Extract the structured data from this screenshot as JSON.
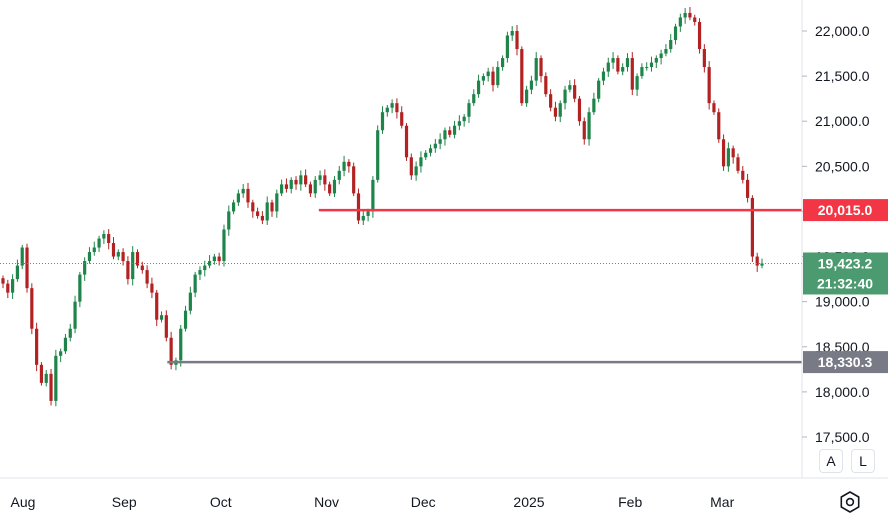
{
  "chart_data": {
    "type": "candlestick",
    "interval": "1D",
    "y_ticks": [
      {
        "value": 17500,
        "label": "17,500.0"
      },
      {
        "value": 18000,
        "label": "18,000.0"
      },
      {
        "value": 18500,
        "label": "18,500.0"
      },
      {
        "value": 19000,
        "label": "19,000.0"
      },
      {
        "value": 19500,
        "label": "19,500.0"
      },
      {
        "value": 20000,
        "label": "20,000.0"
      },
      {
        "value": 20500,
        "label": "20,500.0"
      },
      {
        "value": 21000,
        "label": "21,000.0"
      },
      {
        "value": 21500,
        "label": "21,500.0"
      },
      {
        "value": 22000,
        "label": "22,000.0"
      }
    ],
    "x_ticks": [
      {
        "date": "2024-08-01",
        "label": "Aug"
      },
      {
        "date": "2024-09-02",
        "label": "Sep"
      },
      {
        "date": "2024-10-01",
        "label": "Oct"
      },
      {
        "date": "2024-11-01",
        "label": "Nov"
      },
      {
        "date": "2024-12-02",
        "label": "Dec"
      },
      {
        "date": "2025-01-02",
        "label": "2025"
      },
      {
        "date": "2025-02-03",
        "label": "Feb"
      },
      {
        "date": "2025-03-03",
        "label": "Mar"
      }
    ],
    "ylim": [
      17430,
      22250
    ],
    "closes": [
      19200,
      19100,
      19250,
      19400,
      19600,
      19150,
      18700,
      18300,
      18100,
      18200,
      17900,
      18400,
      18450,
      18600,
      18700,
      19000,
      19300,
      19450,
      19550,
      19600,
      19700,
      19750,
      19650,
      19500,
      19550,
      19450,
      19250,
      19550,
      19400,
      19350,
      19200,
      19100,
      18800,
      18850,
      18600,
      18300,
      18350,
      18700,
      18900,
      19100,
      19300,
      19350,
      19400,
      19450,
      19500,
      19450,
      19800,
      20000,
      20100,
      20200,
      20250,
      20100,
      20000,
      19950,
      19900,
      20100,
      20000,
      20200,
      20300,
      20250,
      20350,
      20300,
      20400,
      20300,
      20200,
      20350,
      20400,
      20300,
      20200,
      20350,
      20450,
      20550,
      20500,
      20200,
      19900,
      19950,
      20000,
      20350,
      20900,
      21100,
      21150,
      21200,
      21100,
      20950,
      20600,
      20400,
      20500,
      20600,
      20650,
      20700,
      20750,
      20800,
      20900,
      20850,
      20950,
      21000,
      21050,
      21200,
      21300,
      21450,
      21500,
      21550,
      21400,
      21600,
      21700,
      21950,
      22000,
      21800,
      21200,
      21350,
      21450,
      21700,
      21500,
      21300,
      21150,
      21050,
      21200,
      21350,
      21400,
      21250,
      21000,
      20800,
      21100,
      21250,
      21450,
      21550,
      21650,
      21700,
      21550,
      21600,
      21700,
      21350,
      21500,
      21600,
      21600,
      21650,
      21700,
      21750,
      21800,
      21900,
      22050,
      22150,
      22200,
      22150,
      22100,
      21800,
      21600,
      21200,
      21100,
      20800,
      20500,
      20700,
      20600,
      20450,
      20350,
      20150,
      19500,
      19400,
      19423.2
    ],
    "resistance": {
      "value": 20015.0,
      "label": "20,015.0",
      "color": "#f23645"
    },
    "support": {
      "value": 18330.3,
      "label": "18,330.3",
      "color": "#787b86"
    },
    "last_price": {
      "value": 19423.2,
      "label": "19,423.2",
      "countdown": "21:32:40",
      "color": "#4c9a6f"
    },
    "up_color": "#26a69a",
    "up_color_shown": "#1e8449",
    "down_color": "#b22222",
    "grid": false,
    "xlabel": "",
    "ylabel": ""
  },
  "controls": {
    "auto_label": "A",
    "log_label": "L",
    "settings_icon": "settings-icon"
  }
}
